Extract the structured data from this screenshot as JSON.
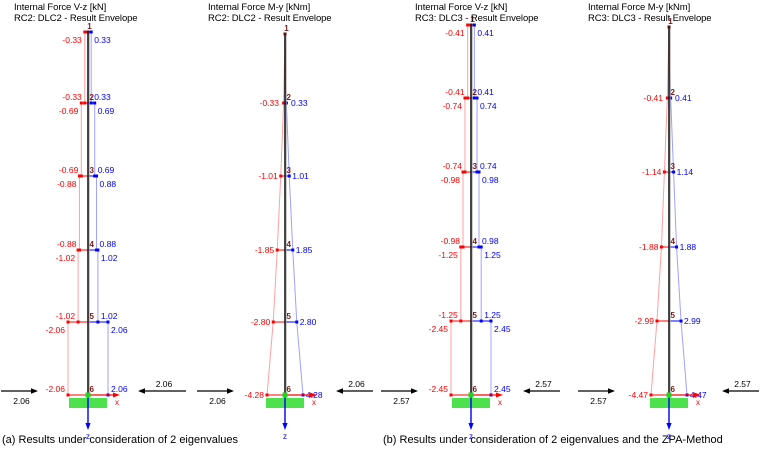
{
  "captions": {
    "a": "(a) Results under consideration of 2 eigenvalues",
    "b": "(b) Results under consideration of 2 eigenvalues and the ZPA-Method"
  },
  "axes": {
    "x_label": "x",
    "z_label": "z"
  },
  "colors": {
    "negative_value": "#FF0000",
    "positive_value": "#0000FF",
    "negative_line": "#FFA0A0",
    "positive_line": "#A0A0FF",
    "node_number": "#7B1818",
    "column": "#1A1A1A",
    "support_fill": "#4DE24D",
    "base_node": "#1ED51E",
    "axis_x": "#FF0000",
    "axis_z": "#0000FF",
    "force_arrow": "#000000"
  },
  "chart_data": [
    {
      "type": "line",
      "diagram": "shear-step-envelope",
      "title_line1": "Internal Force V-z [kN]",
      "title_line2": "RC2: DLC2 - Result Envelope",
      "unit": "kN",
      "nodes": [
        1,
        2,
        3,
        4,
        5,
        6
      ],
      "segment_values": [
        0.33,
        0.69,
        0.88,
        1.02,
        2.06
      ],
      "base_force": 2.06
    },
    {
      "type": "line",
      "diagram": "moment-taper-envelope",
      "title_line1": "Internal Force M-y [kNm]",
      "title_line2": "RC2: DLC2 - Result Envelope",
      "unit": "kNm",
      "nodes": [
        1,
        2,
        3,
        4,
        5,
        6
      ],
      "node_values": [
        0,
        0.33,
        1.01,
        1.85,
        2.8,
        4.28
      ],
      "base_force": 2.06
    },
    {
      "type": "line",
      "diagram": "shear-step-envelope",
      "title_line1": "Internal Force V-z [kN]",
      "title_line2": "RC3: DLC3 - Result Envelope",
      "unit": "kN",
      "nodes": [
        1,
        2,
        3,
        4,
        5,
        6
      ],
      "segment_values": [
        0.41,
        0.74,
        0.98,
        1.25,
        2.45
      ],
      "base_force": 2.57
    },
    {
      "type": "line",
      "diagram": "moment-taper-envelope",
      "title_line1": "Internal Force M-y [kNm]",
      "title_line2": "RC3: DLC3 - Result Envelope",
      "unit": "kNm",
      "nodes": [
        1,
        2,
        3,
        4,
        5,
        6
      ],
      "node_values": [
        0,
        0.41,
        1.14,
        1.88,
        2.99,
        4.47
      ],
      "base_force": 2.57
    }
  ]
}
